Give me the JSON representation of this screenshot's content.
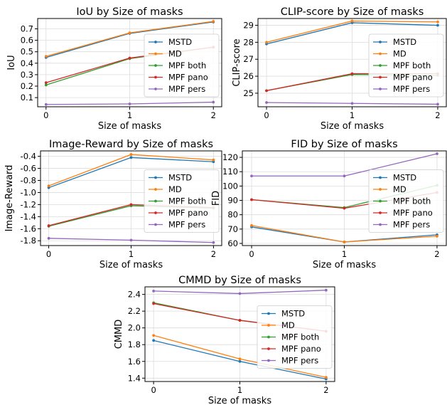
{
  "colors": {
    "MSTD": "#1f77b4",
    "MD": "#ff7f0e",
    "MPF both": "#2ca02c",
    "MPF pano": "#d62728",
    "MPF pers": "#9467bd"
  },
  "chart_data": [
    {
      "type": "line",
      "title": "IoU by Size of masks",
      "xlabel": "Size of masks",
      "ylabel": "IoU",
      "x": [
        0,
        1,
        2
      ],
      "xticks": [
        "0",
        "1",
        "2"
      ],
      "ylim": [
        0.02,
        0.79
      ],
      "yticks": [
        "0.1",
        "0.2",
        "0.3",
        "0.4",
        "0.5",
        "0.6",
        "0.7"
      ],
      "legend": "right",
      "grid": true,
      "series": [
        {
          "name": "MSTD",
          "values": [
            0.45,
            0.66,
            0.76
          ]
        },
        {
          "name": "MD",
          "values": [
            0.46,
            0.665,
            0.765
          ]
        },
        {
          "name": "MPF both",
          "values": [
            0.21,
            0.44,
            0.54
          ]
        },
        {
          "name": "MPF pano",
          "values": [
            0.23,
            0.445,
            0.54
          ]
        },
        {
          "name": "MPF pers",
          "values": [
            0.04,
            0.045,
            0.06
          ]
        }
      ]
    },
    {
      "type": "line",
      "title": "CLIP-score by Size of masks",
      "xlabel": "Size of masks",
      "ylabel": "CLIP-score",
      "x": [
        0,
        1,
        2
      ],
      "xticks": [
        "0",
        "1",
        "2"
      ],
      "ylim": [
        24.2,
        29.4
      ],
      "yticks": [
        "25",
        "26",
        "27",
        "28",
        "29"
      ],
      "legend": "right",
      "grid": true,
      "series": [
        {
          "name": "MSTD",
          "values": [
            27.9,
            29.15,
            29.0
          ]
        },
        {
          "name": "MD",
          "values": [
            28.0,
            29.25,
            29.2
          ]
        },
        {
          "name": "MPF both",
          "values": [
            25.15,
            26.1,
            26.05
          ]
        },
        {
          "name": "MPF pano",
          "values": [
            25.15,
            26.15,
            26.15
          ]
        },
        {
          "name": "MPF pers",
          "values": [
            24.45,
            24.4,
            24.35
          ]
        }
      ]
    },
    {
      "type": "line",
      "title": "Image-Reward by Size of masks",
      "xlabel": "Size of masks",
      "ylabel": "Image-Reward",
      "x": [
        0,
        1,
        2
      ],
      "xticks": [
        "0",
        "1",
        "2"
      ],
      "ylim": [
        -1.88,
        -0.31
      ],
      "yticks": [
        "-1.8",
        "-1.6",
        "-1.4",
        "-1.2",
        "-1.0",
        "-0.8",
        "-0.6",
        "-0.4"
      ],
      "legend": "right",
      "grid": true,
      "series": [
        {
          "name": "MSTD",
          "values": [
            -0.92,
            -0.42,
            -0.49
          ]
        },
        {
          "name": "MD",
          "values": [
            -0.89,
            -0.37,
            -0.46
          ]
        },
        {
          "name": "MPF both",
          "values": [
            -1.56,
            -1.22,
            -1.26
          ]
        },
        {
          "name": "MPF pano",
          "values": [
            -1.55,
            -1.2,
            -1.25
          ]
        },
        {
          "name": "MPF pers",
          "values": [
            -1.76,
            -1.79,
            -1.83
          ]
        }
      ]
    },
    {
      "type": "line",
      "title": "FID by Size of masks",
      "xlabel": "Size of masks",
      "ylabel": "FID",
      "x": [
        0,
        1,
        2
      ],
      "xticks": [
        "0",
        "1",
        "2"
      ],
      "ylim": [
        58.5,
        124.5
      ],
      "yticks": [
        "60",
        "70",
        "80",
        "90",
        "100",
        "110",
        "120"
      ],
      "legend": "right",
      "grid": true,
      "series": [
        {
          "name": "MSTD",
          "values": [
            71.5,
            61.0,
            66.0
          ]
        },
        {
          "name": "MD",
          "values": [
            72.5,
            61.0,
            65.0
          ]
        },
        {
          "name": "MPF both",
          "values": [
            90.5,
            85.0,
            100.5
          ]
        },
        {
          "name": "MPF pano",
          "values": [
            90.5,
            84.5,
            95.5
          ]
        },
        {
          "name": "MPF pers",
          "values": [
            107.0,
            107.0,
            122.5
          ]
        }
      ]
    },
    {
      "type": "line",
      "title": "CMMD by Size of masks",
      "xlabel": "Size of masks",
      "ylabel": "CMMD",
      "x": [
        0,
        1,
        2
      ],
      "xticks": [
        "0",
        "1",
        "2"
      ],
      "ylim": [
        1.36,
        2.49
      ],
      "yticks": [
        "1.4",
        "1.6",
        "1.8",
        "2.0",
        "2.2",
        "2.4"
      ],
      "legend": "right",
      "grid": true,
      "series": [
        {
          "name": "MSTD",
          "values": [
            1.85,
            1.6,
            1.39
          ]
        },
        {
          "name": "MD",
          "values": [
            1.91,
            1.63,
            1.41
          ]
        },
        {
          "name": "MPF both",
          "values": [
            2.3,
            2.09,
            1.96
          ]
        },
        {
          "name": "MPF pano",
          "values": [
            2.29,
            2.09,
            1.96
          ]
        },
        {
          "name": "MPF pers",
          "values": [
            2.44,
            2.41,
            2.45
          ]
        }
      ]
    }
  ]
}
